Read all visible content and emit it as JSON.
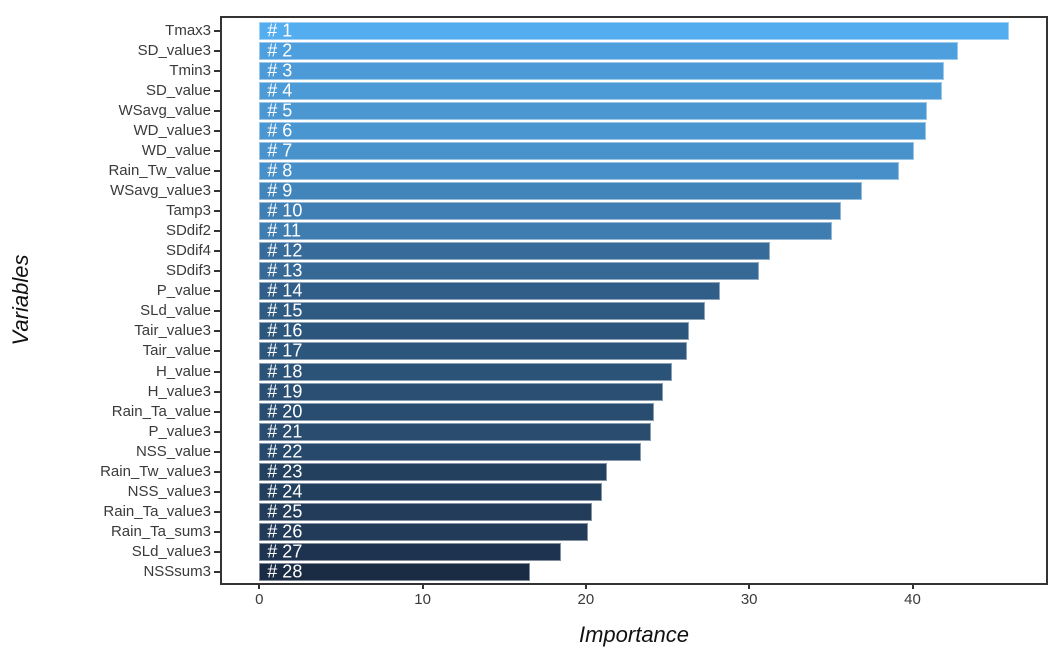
{
  "chart_data": {
    "type": "bar",
    "orientation": "horizontal",
    "title": "",
    "xlabel": "Importance",
    "ylabel": "Variables",
    "categories": [
      "Tmax3",
      "SD_value3",
      "Tmin3",
      "SD_value",
      "WSavg_value",
      "WD_value3",
      "WD_value",
      "Rain_Tw_value",
      "WSavg_value3",
      "Tamp3",
      "SDdif2",
      "SDdif4",
      "SDdif3",
      "P_value",
      "SLd_value",
      "Tair_value3",
      "Tair_value",
      "H_value",
      "H_value3",
      "Rain_Ta_value",
      "P_value3",
      "NSS_value",
      "Rain_Tw_value3",
      "NSS_value3",
      "Rain_Ta_value3",
      "Rain_Ta_sum3",
      "SLd_value3",
      "NSSsum3"
    ],
    "values": [
      45.9,
      42.8,
      41.9,
      41.8,
      40.9,
      40.8,
      40.1,
      39.2,
      36.9,
      35.6,
      35.1,
      31.3,
      30.6,
      28.2,
      27.3,
      26.3,
      26.2,
      25.3,
      24.7,
      24.2,
      24.0,
      23.4,
      21.3,
      21.0,
      20.4,
      20.1,
      18.5,
      16.6
    ],
    "bar_labels": [
      "# 1",
      "# 2",
      "# 3",
      "# 4",
      "# 5",
      "# 6",
      "# 7",
      "# 8",
      "# 9",
      "# 10",
      "# 11",
      "# 12",
      "# 13",
      "# 14",
      "# 15",
      "# 16",
      "# 17",
      "# 18",
      "# 19",
      "# 20",
      "# 21",
      "# 22",
      "# 23",
      "# 24",
      "# 25",
      "# 26",
      "# 27",
      "# 28"
    ],
    "x_ticks": [
      0,
      10,
      20,
      30,
      40
    ],
    "xlim": [
      -2.3,
      48.2
    ],
    "grid": false,
    "legend": "none",
    "colors": {
      "bar_gradient_high_value": "#54ADEF",
      "bar_gradient_low_value": "#1A2B44",
      "bar_label_text": "#FFFFFF",
      "axis_text": "#3A3A3A",
      "axis_title_text": "#111111",
      "panel_border": "#333333",
      "tick_mark": "#333333",
      "background": "#FFFFFF"
    }
  }
}
